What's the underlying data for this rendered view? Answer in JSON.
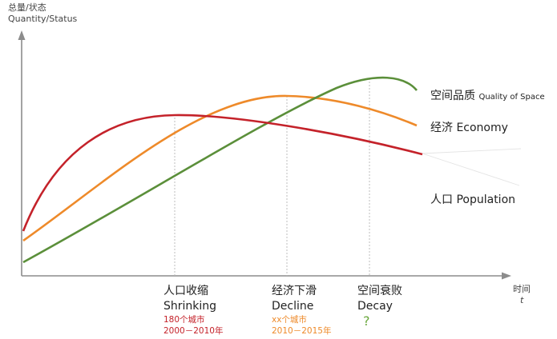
{
  "y_axis": {
    "label_cn": "总量/状态",
    "label_en": "Quantity/Status"
  },
  "x_axis": {
    "label_cn": "时间",
    "label_en": "t"
  },
  "colors": {
    "axis": "#8c8c8c",
    "quality": "#5b8f3a",
    "economy": "#ee8a2a",
    "population": "#c4222a",
    "guide": "#b5b5b5",
    "question": "#6aa83d"
  },
  "curves": {
    "quality": {
      "cn": "空间品质",
      "en": "Quality of Space"
    },
    "economy": {
      "cn": "经济",
      "en": "Economy"
    },
    "population": {
      "cn": "人口",
      "en": "Population"
    }
  },
  "stages": [
    {
      "cn": "人口收缩",
      "en": "Shrinking",
      "note1": "180个城市",
      "note2": "2000－2010年"
    },
    {
      "cn": "经济下滑",
      "en": "Decline",
      "note1": "xx个城市",
      "note2": "2010－2015年"
    },
    {
      "cn": "空间衰败",
      "en": "Decay",
      "question": "?"
    }
  ]
}
